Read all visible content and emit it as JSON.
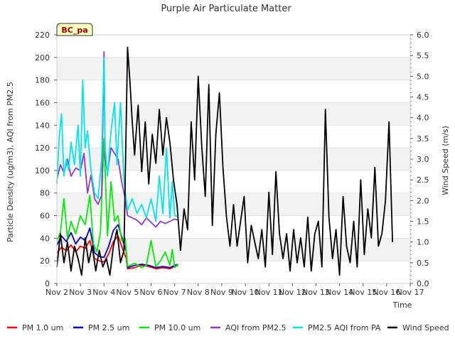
{
  "chart_data": {
    "type": "line",
    "title": "Purple Air Particulate Matter",
    "xlabel": "Time",
    "ylabel_left": "Particle Density (ug/m3), AQI from PM2.5",
    "ylabel_right": "Wind Speed (m/s)",
    "badge": "BC_pa",
    "xlim": [
      2,
      17
    ],
    "ylim_left": [
      0,
      220
    ],
    "ylim_right": [
      0,
      6.0
    ],
    "x_ticks": [
      {
        "v": 2,
        "label": "Nov 2"
      },
      {
        "v": 3,
        "label": "Nov 3"
      },
      {
        "v": 4,
        "label": "Nov 4"
      },
      {
        "v": 5,
        "label": "Nov 5"
      },
      {
        "v": 6,
        "label": "Nov 6"
      },
      {
        "v": 7,
        "label": "Nov 7"
      },
      {
        "v": 8,
        "label": "Nov 8"
      },
      {
        "v": 9,
        "label": "Nov 9"
      },
      {
        "v": 10,
        "label": "Nov 10"
      },
      {
        "v": 11,
        "label": "Nov 11"
      },
      {
        "v": 12,
        "label": "Nov 12"
      },
      {
        "v": 13,
        "label": "Nov 13"
      },
      {
        "v": 14,
        "label": "Nov 14"
      },
      {
        "v": 15,
        "label": "Nov 15"
      },
      {
        "v": 16,
        "label": "Nov 16"
      },
      {
        "v": 17,
        "label": "Nov 17"
      }
    ],
    "y_ticks_left": [
      {
        "v": 0,
        "label": "0"
      },
      {
        "v": 20,
        "label": "20"
      },
      {
        "v": 40,
        "label": "40"
      },
      {
        "v": 60,
        "label": "60"
      },
      {
        "v": 80,
        "label": "80"
      },
      {
        "v": 100,
        "label": "100"
      },
      {
        "v": 120,
        "label": "120"
      },
      {
        "v": 140,
        "label": "140"
      },
      {
        "v": 160,
        "label": "160"
      },
      {
        "v": 180,
        "label": "180"
      },
      {
        "v": 200,
        "label": "200"
      },
      {
        "v": 220,
        "label": "220"
      }
    ],
    "y_ticks_right": [
      {
        "v": 0.0,
        "label": "0.0"
      },
      {
        "v": 0.5,
        "label": "0.5"
      },
      {
        "v": 1.0,
        "label": "1.0"
      },
      {
        "v": 1.5,
        "label": "1.5"
      },
      {
        "v": 2.0,
        "label": "2.0"
      },
      {
        "v": 2.5,
        "label": "2.5"
      },
      {
        "v": 3.0,
        "label": "3.0"
      },
      {
        "v": 3.5,
        "label": "3.5"
      },
      {
        "v": 4.0,
        "label": "4.0"
      },
      {
        "v": 4.5,
        "label": "4.5"
      },
      {
        "v": 5.0,
        "label": "5.0"
      },
      {
        "v": 5.5,
        "label": "5.5"
      },
      {
        "v": 6.0,
        "label": "6.0"
      }
    ],
    "series": [
      {
        "name": "PM 1.0 um",
        "color": "#ff0000",
        "axis": "left",
        "x": [
          2.0,
          2.2,
          2.4,
          2.6,
          2.8,
          3.0,
          3.2,
          3.4,
          3.6,
          3.8,
          4.0,
          4.2,
          4.4,
          4.6,
          4.8,
          4.95,
          5.0,
          5.3,
          5.6,
          5.9,
          6.2,
          6.5,
          6.8,
          7.0,
          7.15
        ],
        "y": [
          27,
          32,
          29,
          34,
          28,
          33,
          31,
          38,
          22,
          20,
          19,
          26,
          37,
          42,
          30,
          22,
          13,
          14,
          16,
          15,
          13,
          14,
          13,
          15,
          16
        ]
      },
      {
        "name": "PM 2.5 um",
        "color": "#0000cc",
        "axis": "left",
        "x": [
          2.0,
          2.2,
          2.4,
          2.6,
          2.8,
          3.0,
          3.2,
          3.4,
          3.6,
          3.8,
          4.0,
          4.2,
          4.4,
          4.6,
          4.8,
          4.95,
          5.0,
          5.3,
          5.6,
          5.9,
          6.2,
          6.5,
          6.8,
          7.0,
          7.15
        ],
        "y": [
          34,
          42,
          37,
          45,
          35,
          41,
          38,
          49,
          27,
          24,
          23,
          33,
          47,
          52,
          38,
          28,
          14,
          16,
          17,
          16,
          14,
          15,
          14,
          16,
          17
        ]
      },
      {
        "name": "PM 10.0 um",
        "color": "#00ee00",
        "axis": "left",
        "x": [
          2.0,
          2.15,
          2.3,
          2.45,
          2.6,
          2.8,
          3.0,
          3.2,
          3.4,
          3.55,
          3.7,
          3.85,
          4.0,
          4.15,
          4.3,
          4.45,
          4.6,
          4.75,
          4.9,
          5.0,
          5.3,
          5.6,
          5.8,
          6.0,
          6.2,
          6.4,
          6.6,
          6.8,
          6.9,
          7.0,
          7.15
        ],
        "y": [
          38,
          45,
          75,
          40,
          55,
          44,
          60,
          52,
          78,
          35,
          28,
          45,
          128,
          42,
          90,
          55,
          60,
          38,
          40,
          15,
          18,
          14,
          16,
          38,
          15,
          20,
          28,
          16,
          30,
          14,
          17
        ]
      },
      {
        "name": "AQI from PM2.5",
        "color": "#9933cc",
        "axis": "left",
        "x": [
          2.0,
          2.15,
          2.3,
          2.45,
          2.6,
          2.8,
          3.0,
          3.15,
          3.3,
          3.45,
          3.6,
          3.75,
          3.9,
          4.0,
          4.05,
          4.15,
          4.3,
          4.45,
          4.6,
          4.75,
          4.9,
          5.0,
          5.2,
          5.4,
          5.6,
          5.8,
          6.0,
          6.2,
          6.4,
          6.6,
          6.8,
          7.0,
          7.15
        ],
        "y": [
          92,
          105,
          98,
          110,
          95,
          102,
          100,
          115,
          80,
          96,
          75,
          70,
          78,
          205,
          110,
          98,
          120,
          115,
          110,
          90,
          75,
          60,
          58,
          56,
          52,
          58,
          54,
          50,
          55,
          53,
          55,
          57,
          56
        ]
      },
      {
        "name": "PM2.5 AQI from PA",
        "color": "#00e5ee",
        "axis": "left",
        "x": [
          2.0,
          2.1,
          2.2,
          2.3,
          2.4,
          2.5,
          2.6,
          2.75,
          2.9,
          3.0,
          3.1,
          3.2,
          3.3,
          3.45,
          3.6,
          3.75,
          3.9,
          4.0,
          4.05,
          4.15,
          4.3,
          4.45,
          4.55,
          4.7,
          4.85,
          5.0,
          5.2,
          5.4,
          5.6,
          5.8,
          6.0,
          6.2,
          6.35,
          6.5,
          6.65,
          6.8,
          6.9,
          7.0,
          7.15
        ],
        "y": [
          88,
          130,
          150,
          95,
          110,
          100,
          125,
          105,
          140,
          95,
          180,
          120,
          135,
          100,
          80,
          75,
          110,
          200,
          120,
          95,
          135,
          160,
          105,
          160,
          90,
          65,
          75,
          62,
          70,
          58,
          75,
          55,
          95,
          62,
          120,
          58,
          90,
          60,
          59
        ]
      },
      {
        "name": "Wind Speed",
        "color": "#000000",
        "axis": "right",
        "x": [
          2.0,
          2.15,
          2.3,
          2.45,
          2.6,
          2.75,
          2.9,
          3.05,
          3.2,
          3.35,
          3.5,
          3.65,
          3.8,
          3.95,
          4.1,
          4.25,
          4.4,
          4.55,
          4.7,
          4.85,
          5.0,
          5.1,
          5.2,
          5.3,
          5.45,
          5.6,
          5.75,
          5.9,
          6.05,
          6.2,
          6.35,
          6.5,
          6.65,
          6.8,
          6.95,
          7.1,
          7.25,
          7.4,
          7.55,
          7.7,
          7.85,
          8.0,
          8.15,
          8.3,
          8.45,
          8.6,
          8.75,
          8.9,
          9.05,
          9.2,
          9.35,
          9.5,
          9.65,
          9.8,
          9.95,
          10.1,
          10.25,
          10.4,
          10.55,
          10.7,
          10.85,
          11.0,
          11.15,
          11.3,
          11.45,
          11.6,
          11.75,
          11.9,
          12.05,
          12.2,
          12.35,
          12.5,
          12.65,
          12.8,
          12.95,
          13.1,
          13.25,
          13.4,
          13.55,
          13.7,
          13.85,
          14.0,
          14.15,
          14.3,
          14.45,
          14.6,
          14.75,
          14.9,
          15.05,
          15.2,
          15.35,
          15.5,
          15.65,
          15.8,
          15.95,
          16.1,
          16.25
        ],
        "y": [
          0.4,
          1.2,
          0.5,
          1.0,
          0.3,
          0.9,
          0.6,
          0.2,
          1.1,
          0.5,
          0.9,
          0.3,
          0.8,
          0.4,
          0.6,
          0.2,
          0.9,
          1.3,
          0.5,
          0.8,
          5.7,
          4.9,
          3.9,
          3.1,
          4.3,
          2.7,
          3.9,
          2.4,
          3.6,
          2.9,
          4.2,
          3.1,
          4.0,
          3.4,
          2.5,
          1.9,
          0.8,
          1.8,
          1.3,
          3.9,
          2.5,
          5.0,
          3.3,
          2.1,
          4.8,
          1.4,
          3.6,
          4.6,
          2.8,
          1.6,
          0.9,
          1.9,
          0.9,
          1.5,
          2.1,
          0.5,
          1.4,
          1.0,
          0.6,
          1.3,
          0.4,
          2.2,
          0.7,
          2.7,
          1.2,
          0.6,
          1.2,
          0.3,
          1.3,
          0.5,
          1.1,
          0.4,
          1.6,
          0.3,
          1.2,
          1.5,
          0.4,
          4.2,
          1.6,
          0.6,
          1.3,
          0.2,
          2.1,
          0.9,
          0.5,
          1.5,
          0.4,
          2.5,
          0.7,
          1.8,
          1.1,
          2.8,
          0.9,
          1.2,
          2.0,
          3.9,
          1.0
        ]
      }
    ]
  }
}
